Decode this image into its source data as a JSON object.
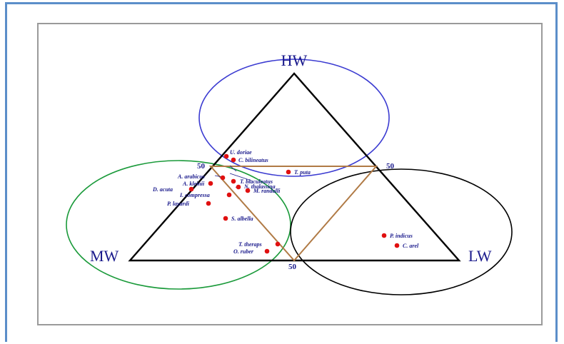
{
  "diagram": {
    "corners": {
      "top": "HW",
      "left": "MW",
      "right": "LW"
    },
    "midpoint_labels": {
      "left": "50",
      "right": "50",
      "bottom": "50"
    },
    "colors": {
      "hw_circle": "#3b3bd1",
      "mw_circle": "#1a9a3a",
      "lw_circle": "#000000",
      "triangle": "#000000",
      "inner_triangle": "#b07a45",
      "points": "#e01010",
      "text": "#1a1a8c",
      "frame": "#9a9a9a",
      "outer_frame": "#5b8ec9"
    },
    "species": [
      "U. doriae",
      "C. bilineatus",
      "T. puta",
      "A. arabicus",
      "T. biaculeatus",
      "A. kleinii",
      "N. thalassina",
      "D. acuta",
      "M. randalli",
      "I. compressa",
      "P. layardi",
      "S. albella",
      "T. theraps",
      "O. ruber",
      "P. indicus",
      "C. arel"
    ]
  }
}
